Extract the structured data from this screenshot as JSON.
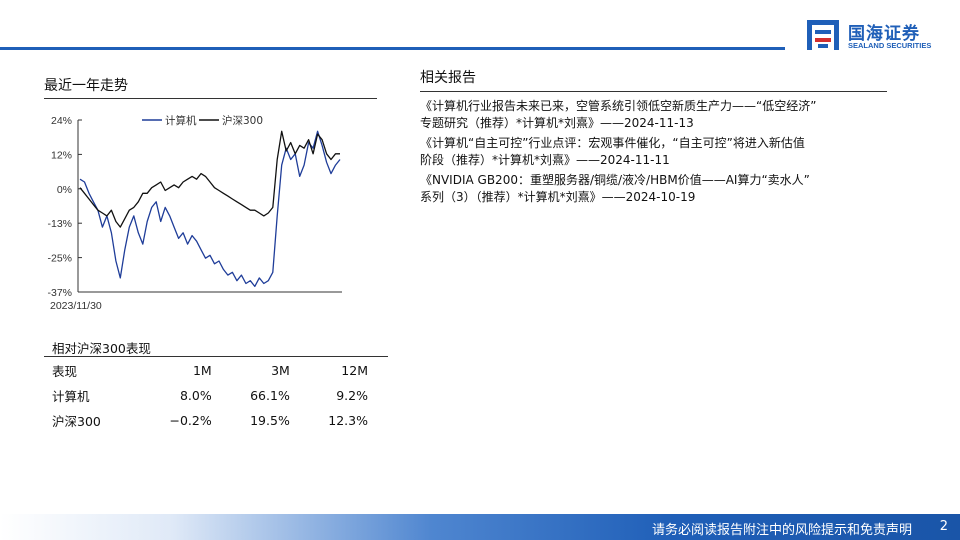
{
  "brand": {
    "name_cn": "国海证券",
    "name_en": "SEALAND SECURITIES",
    "color": "#1f5fb8"
  },
  "trend": {
    "title": "最近一年走势"
  },
  "chart_data": {
    "type": "line",
    "x_label_start": "2023/11/30",
    "yticks": [
      "24%",
      "12%",
      "0%",
      "-13%",
      "-25%",
      "-37%"
    ],
    "ylim": [
      -37,
      24
    ],
    "legend_position": "top-center",
    "grid": false,
    "series": [
      {
        "name": "计算机",
        "color": "#1f3d99",
        "values": [
          3,
          2,
          -2,
          -5,
          -8,
          -14,
          -10,
          -16,
          -26,
          -32,
          -22,
          -14,
          -10,
          -16,
          -20,
          -12,
          -7,
          -5,
          -12,
          -7,
          -10,
          -14,
          -18,
          -16,
          -20,
          -17,
          -19,
          -22,
          -25,
          -24,
          -27,
          -26,
          -29,
          -31,
          -30,
          -33,
          -31,
          -34,
          -33,
          -35,
          -32,
          -34,
          -33,
          -30,
          -10,
          8,
          14,
          10,
          12,
          4,
          8,
          16,
          14,
          20,
          15,
          9,
          5,
          8,
          10
        ]
      },
      {
        "name": "沪深300",
        "color": "#111111",
        "values": [
          0,
          -2,
          -4,
          -6,
          -8,
          -9,
          -10,
          -8,
          -12,
          -14,
          -11,
          -8,
          -7,
          -5,
          -2,
          -2,
          0,
          1,
          2,
          -1,
          0,
          1,
          0,
          2,
          3,
          4,
          3,
          5,
          4,
          2,
          0,
          -1,
          -2,
          -3,
          -4,
          -5,
          -6,
          -7,
          -8,
          -8,
          -9,
          -10,
          -9,
          -7,
          10,
          20,
          13,
          16,
          12,
          15,
          14,
          17,
          12,
          19,
          17,
          12,
          10,
          12,
          12
        ]
      }
    ]
  },
  "relative": {
    "title": "相对沪深300表现",
    "headers": [
      "表现",
      "1M",
      "3M",
      "12M"
    ],
    "rows": [
      [
        "计算机",
        "8.0%",
        "66.1%",
        "9.2%"
      ],
      [
        "沪深300",
        "−0.2%",
        "19.5%",
        "12.3%"
      ]
    ]
  },
  "related": {
    "title": "相关报告",
    "items": [
      [
        "《计算机行业报告未来已来，空管系统引领低空新质生产力——“低空经济”",
        "专题研究（推荐）*计算机*刘熹》——2024-11-13"
      ],
      [
        "《计算机“自主可控”行业点评：宏观事件催化，“自主可控”将进入新估值",
        "阶段（推荐）*计算机*刘熹》——2024-11-11"
      ],
      [
        "《NVIDIA GB200：重塑服务器/铜缆/液冷/HBM价值——AI算力“卖水人”",
        "系列（3）（推荐）*计算机*刘熹》——2024-10-19"
      ]
    ]
  },
  "footer": {
    "disclaimer": "请务必阅读报告附注中的风险提示和免责声明",
    "page": "2"
  }
}
